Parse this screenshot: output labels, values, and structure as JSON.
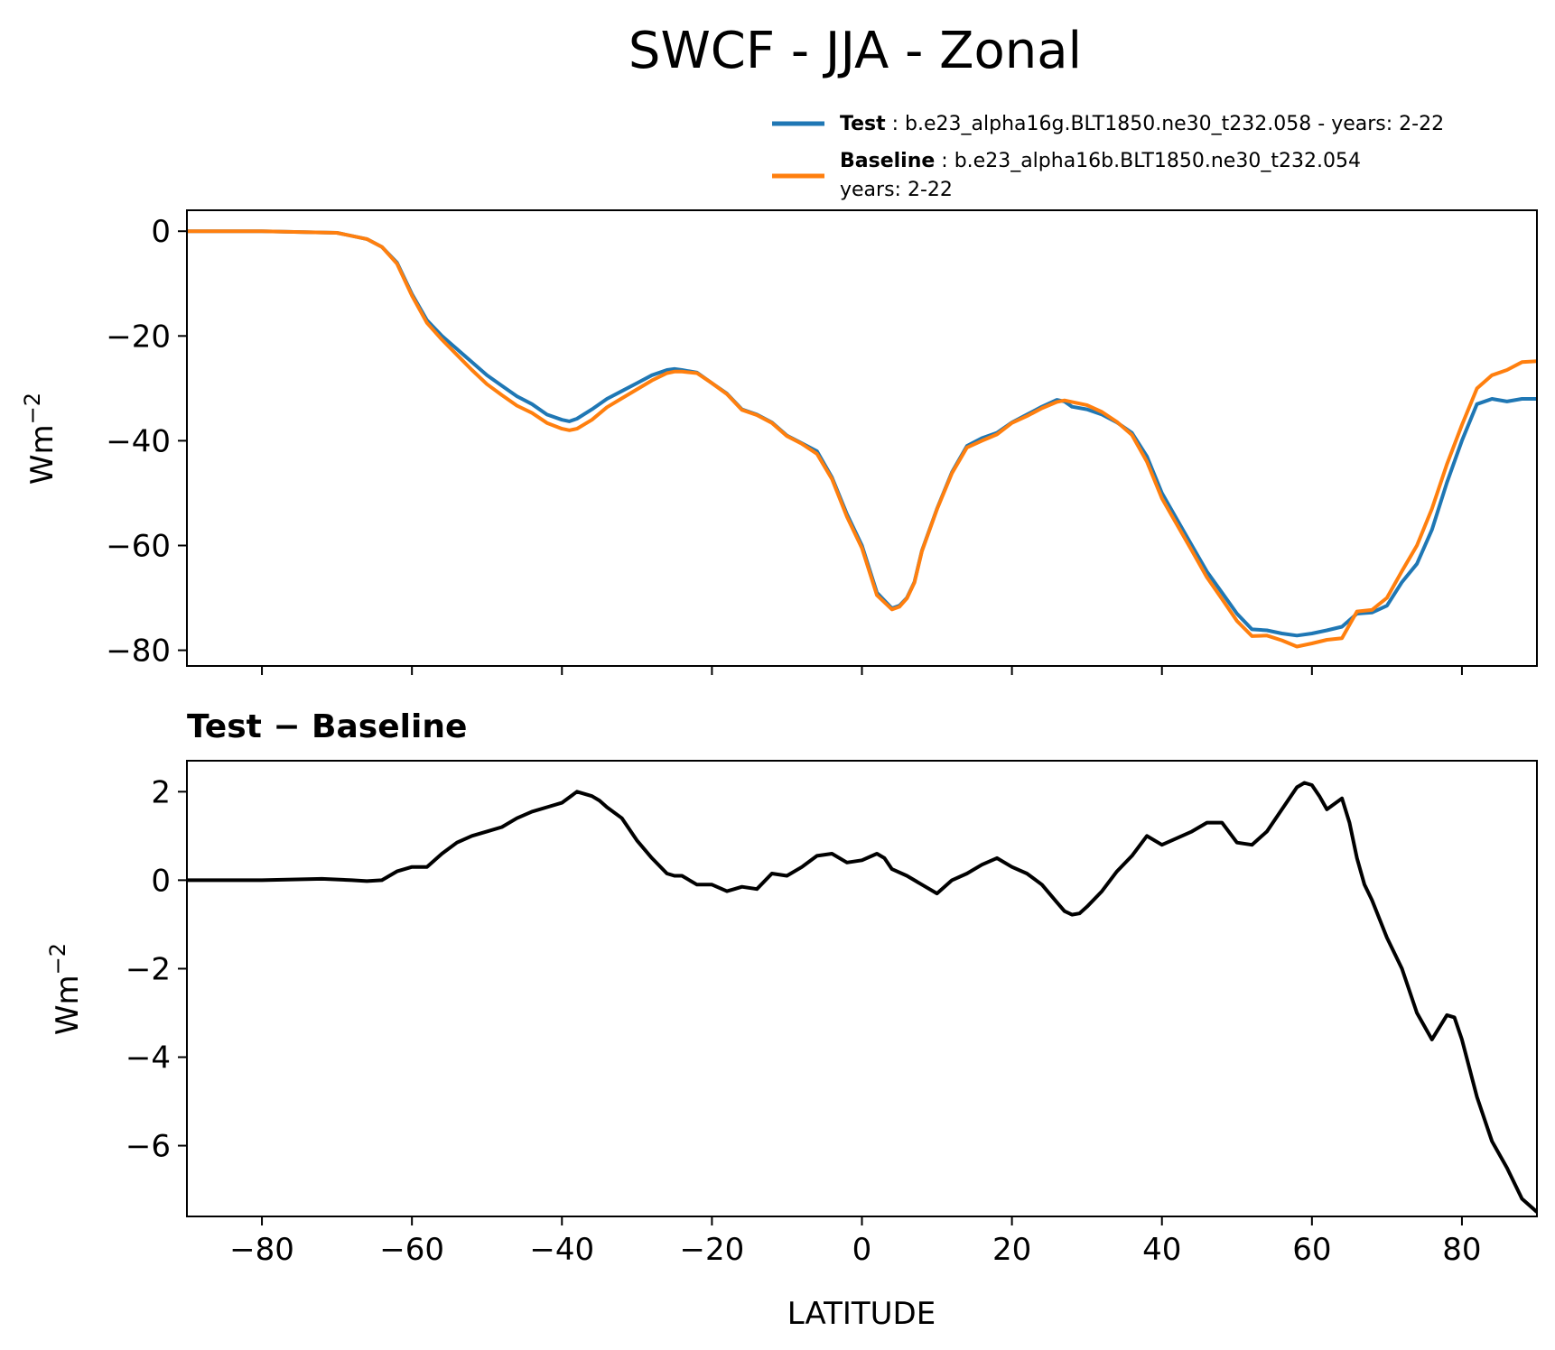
{
  "colors": {
    "test": "#1f77b4",
    "baseline": "#ff7f0e",
    "difference": "#000000"
  },
  "chart_data": [
    {
      "type": "line",
      "title": "SWCF - JJA - Zonal",
      "ylabel": "Wm",
      "ylabel_sup": "−2",
      "xlim": [
        -90,
        90
      ],
      "ylim": [
        -83,
        4
      ],
      "yticks": [
        0,
        -20,
        -40,
        -60,
        -80
      ],
      "ytick_labels": [
        "0",
        "−20",
        "−40",
        "−60",
        "−80"
      ],
      "legend": {
        "position": "top-right",
        "entries": [
          {
            "name": "Test",
            "sep": " : ",
            "desc": "b.e23_alpha16g.BLT1850.ne30_t232.058 - years: 2-22",
            "desc2": ""
          },
          {
            "name": "Baseline",
            "sep": " : ",
            "desc": "b.e23_alpha16b.BLT1850.ne30_t232.054",
            "desc2": "years: 2-22"
          }
        ]
      },
      "series": [
        {
          "name": "Test",
          "x": [
            -90,
            -80,
            -70,
            -66,
            -64,
            -62,
            -60,
            -58,
            -56,
            -54,
            -52,
            -50,
            -48,
            -46,
            -44,
            -42,
            -40,
            -39,
            -38,
            -36,
            -34,
            -32,
            -30,
            -28,
            -26,
            -25,
            -24,
            -22,
            -20,
            -18,
            -16,
            -14,
            -12,
            -10,
            -8,
            -6,
            -4,
            -2,
            0,
            2,
            4,
            5,
            6,
            7,
            8,
            10,
            12,
            14,
            16,
            18,
            20,
            22,
            24,
            26,
            27,
            28,
            30,
            32,
            34,
            36,
            38,
            40,
            42,
            44,
            46,
            48,
            50,
            52,
            54,
            56,
            58,
            60,
            62,
            64,
            66,
            68,
            70,
            72,
            74,
            76,
            78,
            80,
            82,
            84,
            86,
            88,
            90
          ],
          "values": [
            0,
            0,
            -0.3,
            -1.5,
            -3,
            -6,
            -12,
            -17,
            -20,
            -22.5,
            -25,
            -27.5,
            -29.5,
            -31.5,
            -33,
            -35,
            -36,
            -36.3,
            -35.8,
            -34,
            -32,
            -30.5,
            -29,
            -27.5,
            -26.5,
            -26.3,
            -26.5,
            -27,
            -29,
            -31,
            -34,
            -35,
            -36.5,
            -39,
            -40.5,
            -42,
            -47,
            -54,
            -60,
            -69,
            -72,
            -71.5,
            -70,
            -67,
            -61,
            -53,
            -46,
            -41,
            -39.5,
            -38.5,
            -36.5,
            -35,
            -33.5,
            -32.2,
            -32.5,
            -33.5,
            -34,
            -35,
            -36.5,
            -38.5,
            -43,
            -50,
            -55,
            -60,
            -65,
            -69,
            -73,
            -76,
            -76.2,
            -76.8,
            -77.2,
            -76.8,
            -76.2,
            -75.5,
            -73,
            -72.8,
            -71.5,
            -67,
            -63.5,
            -57,
            -48,
            -40,
            -33,
            -32,
            -32.5,
            -32,
            -32
          ]
        },
        {
          "name": "Baseline",
          "x": [
            -90,
            -80,
            -70,
            -66,
            -64,
            -62,
            -60,
            -58,
            -56,
            -54,
            -52,
            -50,
            -48,
            -46,
            -44,
            -42,
            -40,
            -39,
            -38,
            -36,
            -34,
            -32,
            -30,
            -28,
            -26,
            -25,
            -24,
            -22,
            -20,
            -18,
            -16,
            -14,
            -12,
            -10,
            -8,
            -6,
            -4,
            -2,
            0,
            2,
            4,
            5,
            6,
            7,
            8,
            10,
            12,
            14,
            16,
            18,
            20,
            22,
            24,
            26,
            27,
            28,
            30,
            32,
            34,
            36,
            38,
            40,
            42,
            44,
            46,
            48,
            50,
            52,
            54,
            56,
            58,
            60,
            62,
            64,
            66,
            68,
            70,
            72,
            74,
            76,
            78,
            80,
            82,
            84,
            86,
            88,
            90
          ],
          "values": [
            0,
            0,
            -0.3,
            -1.5,
            -3,
            -6.2,
            -12.3,
            -17.5,
            -20.7,
            -23.6,
            -26.5,
            -29.2,
            -31.3,
            -33.3,
            -34.7,
            -36.6,
            -37.7,
            -38,
            -37.7,
            -36,
            -33.6,
            -31.9,
            -30.2,
            -28.5,
            -27.1,
            -26.8,
            -26.8,
            -27.1,
            -29,
            -31.1,
            -34.1,
            -35.1,
            -36.6,
            -39.1,
            -40.6,
            -42.5,
            -47.3,
            -54.5,
            -60.5,
            -69.5,
            -72.2,
            -71.7,
            -70.1,
            -67.1,
            -61.1,
            -53.1,
            -46.2,
            -41.3,
            -40.0,
            -38.8,
            -36.6,
            -35.3,
            -33.8,
            -32.6,
            -32.3,
            -32.6,
            -33.2,
            -34.5,
            -36.4,
            -38.9,
            -44,
            -51,
            -56,
            -61,
            -66.1,
            -70.2,
            -74.4,
            -77.3,
            -77.2,
            -78.1,
            -79.3,
            -78.7,
            -78,
            -77.7,
            -72.6,
            -72.3,
            -70,
            -64.9,
            -60,
            -53,
            -44.5,
            -37,
            -30,
            -27.5,
            -26.5,
            -25,
            -24.8
          ]
        }
      ]
    },
    {
      "type": "line",
      "title": "Test − Baseline",
      "xlabel": "LATITUDE",
      "ylabel": "Wm",
      "ylabel_sup": "−2",
      "xlim": [
        -90,
        90
      ],
      "ylim": [
        -7.6,
        2.7
      ],
      "xticks": [
        -80,
        -60,
        -40,
        -20,
        0,
        20,
        40,
        60,
        80
      ],
      "xtick_labels": [
        "−80",
        "−60",
        "−40",
        "−20",
        "0",
        "20",
        "40",
        "60",
        "80"
      ],
      "yticks": [
        2,
        0,
        -2,
        -4,
        -6
      ],
      "ytick_labels": [
        "2",
        "0",
        "−2",
        "−4",
        "−6"
      ],
      "series": [
        {
          "name": "Test − Baseline",
          "x": [
            -90,
            -80,
            -72,
            -68,
            -66,
            -64,
            -62,
            -60,
            -58,
            -56,
            -54,
            -52,
            -50,
            -48,
            -46,
            -44,
            -42,
            -40,
            -38,
            -36,
            -35,
            -34,
            -32,
            -30,
            -28,
            -26,
            -25,
            -24,
            -22,
            -20,
            -18,
            -17,
            -16,
            -14,
            -12,
            -10,
            -8,
            -6,
            -4,
            -2,
            0,
            2,
            3,
            4,
            6,
            8,
            10,
            12,
            14,
            16,
            18,
            20,
            22,
            24,
            26,
            27,
            28,
            29,
            30,
            32,
            34,
            36,
            38,
            40,
            42,
            44,
            46,
            48,
            50,
            52,
            54,
            56,
            58,
            59,
            60,
            61,
            62,
            64,
            65,
            66,
            67,
            68,
            70,
            72,
            74,
            76,
            78,
            79,
            80,
            82,
            84,
            86,
            88,
            90
          ],
          "values": [
            0,
            0,
            0.03,
            0,
            -0.02,
            0,
            0.2,
            0.3,
            0.3,
            0.6,
            0.85,
            1,
            1.1,
            1.2,
            1.4,
            1.55,
            1.65,
            1.75,
            2.0,
            1.9,
            1.8,
            1.65,
            1.4,
            0.9,
            0.5,
            0.15,
            0.1,
            0.1,
            -0.1,
            -0.1,
            -0.25,
            -0.2,
            -0.15,
            -0.2,
            0.15,
            0.1,
            0.3,
            0.55,
            0.6,
            0.4,
            0.45,
            0.6,
            0.5,
            0.25,
            0.1,
            -0.1,
            -0.3,
            0,
            0.15,
            0.35,
            0.5,
            0.3,
            0.15,
            -0.1,
            -0.5,
            -0.7,
            -0.78,
            -0.75,
            -0.6,
            -0.25,
            0.2,
            0.55,
            1.0,
            0.8,
            0.95,
            1.1,
            1.3,
            1.3,
            0.85,
            0.8,
            1.1,
            1.6,
            2.1,
            2.2,
            2.15,
            1.9,
            1.6,
            1.85,
            1.3,
            0.5,
            -0.1,
            -0.45,
            -1.3,
            -2.0,
            -3.0,
            -3.6,
            -3.05,
            -3.1,
            -3.6,
            -4.9,
            -5.9,
            -6.5,
            -7.2,
            -7.5
          ]
        }
      ]
    }
  ]
}
